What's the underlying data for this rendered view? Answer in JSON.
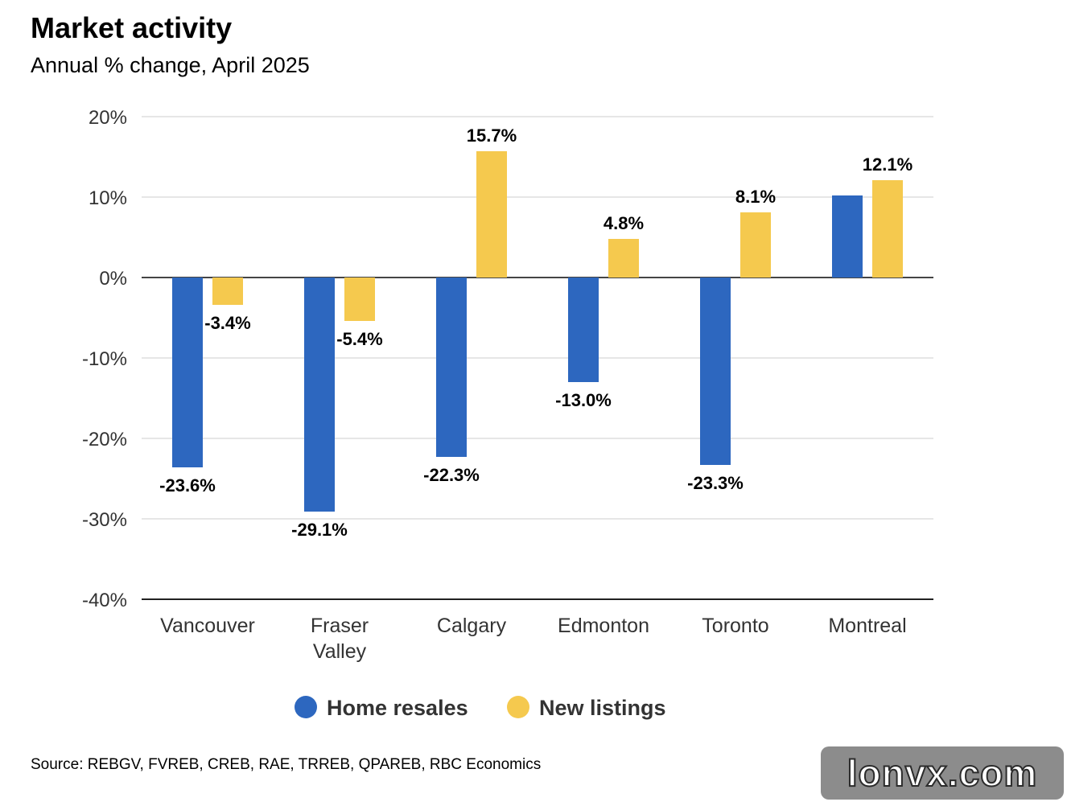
{
  "chart_data": {
    "type": "bar",
    "title": "Market activity",
    "subtitle": "Annual % change, April 2025",
    "categories": [
      [
        "Vancouver"
      ],
      [
        "Fraser",
        "Valley"
      ],
      [
        "Calgary"
      ],
      [
        "Edmonton"
      ],
      [
        "Toronto"
      ],
      [
        "Montreal"
      ]
    ],
    "series": [
      {
        "name": "Home resales",
        "color": "#2d67bf",
        "values": [
          -23.6,
          -29.1,
          -22.3,
          -13.0,
          -23.3,
          10.2
        ],
        "labels": [
          "-23.6%",
          "-29.1%",
          "-22.3%",
          "-13.0%",
          "-23.3%",
          null
        ]
      },
      {
        "name": "New listings",
        "color": "#f5c94e",
        "values": [
          -3.4,
          -5.4,
          15.7,
          4.8,
          8.1,
          12.1
        ],
        "labels": [
          "-3.4%",
          "-5.4%",
          "15.7%",
          "4.8%",
          "8.1%",
          "12.1%"
        ]
      }
    ],
    "ylim": [
      -40,
      20
    ],
    "yticks": [
      20,
      10,
      0,
      -10,
      -20,
      -30,
      -40
    ],
    "ytick_labels": [
      "20%",
      "10%",
      "0%",
      "-10%",
      "-20%",
      "-30%",
      "-40%"
    ],
    "grid": true,
    "legend_position": "bottom-center"
  },
  "source": "Source: REBGV, FVREB, CREB, RAE, TRREB, QPAREB, RBC Economics",
  "watermark": "lonvx.com"
}
